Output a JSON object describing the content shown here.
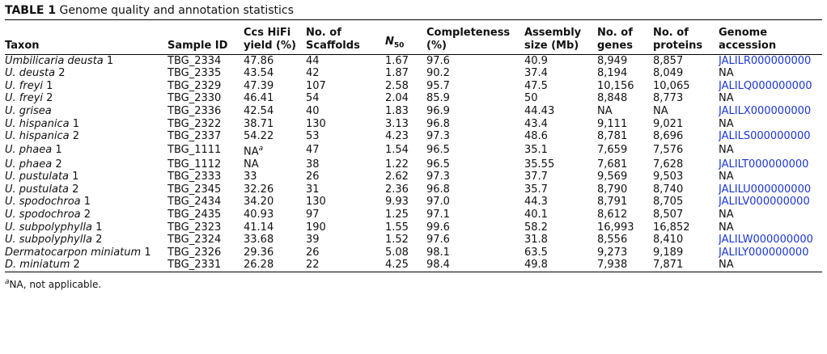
{
  "caption": {
    "label": "TABLE 1",
    "text": "Genome quality and annotation statistics"
  },
  "columns": [
    {
      "line1": "",
      "line2": "Taxon"
    },
    {
      "line1": "",
      "line2": "Sample ID"
    },
    {
      "line1": "Ccs HiFi",
      "line2": "yield (%)"
    },
    {
      "line1": "No. of",
      "line2": "Scaffolds"
    },
    {
      "line1": "",
      "line2": "N",
      "sub": "50"
    },
    {
      "line1": "Completeness",
      "line2": "(%)"
    },
    {
      "line1": "Assembly",
      "line2": "size (Mb)"
    },
    {
      "line1": "No. of",
      "line2": "genes"
    },
    {
      "line1": "No. of",
      "line2": "proteins"
    },
    {
      "line1": "Genome",
      "line2": "accession"
    }
  ],
  "rows": [
    {
      "taxon_italic": "Umbilicaria deusta",
      "taxon_num": "1",
      "sample": "TBG_2334",
      "yield": "47.86",
      "yield_sup": "",
      "scaffolds": "44",
      "n50": "1.67",
      "completeness": "97.6",
      "size": "40.9",
      "genes": "8,949",
      "proteins": "8,857",
      "accession": "JALILR000000000",
      "accession_link": true
    },
    {
      "taxon_italic": "U. deusta",
      "taxon_num": "2",
      "sample": "TBG_2335",
      "yield": "43.54",
      "yield_sup": "",
      "scaffolds": "42",
      "n50": "1.87",
      "completeness": "90.2",
      "size": "37.4",
      "genes": "8,194",
      "proteins": "8,049",
      "accession": "NA",
      "accession_link": false
    },
    {
      "taxon_italic": "U. freyi",
      "taxon_num": "1",
      "sample": "TBG_2329",
      "yield": "47.39",
      "yield_sup": "",
      "scaffolds": "107",
      "n50": "2.58",
      "completeness": "95.7",
      "size": "47.5",
      "genes": "10,156",
      "proteins": "10,065",
      "accession": "JALILQ000000000",
      "accession_link": true
    },
    {
      "taxon_italic": "U. freyi",
      "taxon_num": "2",
      "sample": "TBG_2330",
      "yield": "46.41",
      "yield_sup": "",
      "scaffolds": "54",
      "n50": "2.04",
      "completeness": "85.9",
      "size": "50",
      "genes": "8,848",
      "proteins": "8,773",
      "accession": "NA",
      "accession_link": false
    },
    {
      "taxon_italic": "U. grisea",
      "taxon_num": "",
      "sample": "TBG_2336",
      "yield": "42.54",
      "yield_sup": "",
      "scaffolds": "40",
      "n50": "1.83",
      "completeness": "96.9",
      "size": "44.43",
      "genes": "NA",
      "proteins": "NA",
      "accession": "JALILX000000000",
      "accession_link": true
    },
    {
      "taxon_italic": "U. hispanica",
      "taxon_num": "1",
      "sample": "TBG_2322",
      "yield": "38.71",
      "yield_sup": "",
      "scaffolds": "130",
      "n50": "3.13",
      "completeness": "96.8",
      "size": "43.4",
      "genes": "9,111",
      "proteins": "9,021",
      "accession": "NA",
      "accession_link": false
    },
    {
      "taxon_italic": "U. hispanica",
      "taxon_num": "2",
      "sample": "TBG_2337",
      "yield": "54.22",
      "yield_sup": "",
      "scaffolds": "53",
      "n50": "4.23",
      "completeness": "97.3",
      "size": "48.6",
      "genes": "8,781",
      "proteins": "8,696",
      "accession": "JALILS000000000",
      "accession_link": true
    },
    {
      "taxon_italic": "U. phaea",
      "taxon_num": "1",
      "sample": "TBG_1111",
      "yield": "NA",
      "yield_sup": "a",
      "scaffolds": "47",
      "n50": "1.54",
      "completeness": "96.5",
      "size": "35.1",
      "genes": "7,659",
      "proteins": "7,576",
      "accession": "NA",
      "accession_link": false
    },
    {
      "taxon_italic": "U. phaea",
      "taxon_num": "2",
      "sample": "TBG_1112",
      "yield": "NA",
      "yield_sup": "",
      "scaffolds": "38",
      "n50": "1.22",
      "completeness": "96.5",
      "size": "35.55",
      "genes": "7,681",
      "proteins": "7,628",
      "accession": "JALILT000000000",
      "accession_link": true
    },
    {
      "taxon_italic": "U. pustulata",
      "taxon_num": "1",
      "sample": "TBG_2333",
      "yield": "33",
      "yield_sup": "",
      "scaffolds": "26",
      "n50": "2.62",
      "completeness": "97.3",
      "size": "37.7",
      "genes": "9,569",
      "proteins": "9,503",
      "accession": "NA",
      "accession_link": false
    },
    {
      "taxon_italic": "U. pustulata",
      "taxon_num": "2",
      "sample": "TBG_2345",
      "yield": "32.26",
      "yield_sup": "",
      "scaffolds": "31",
      "n50": "2.36",
      "completeness": "96.8",
      "size": "35.7",
      "genes": "8,790",
      "proteins": "8,740",
      "accession": "JALILU000000000",
      "accession_link": true
    },
    {
      "taxon_italic": "U. spodochroa",
      "taxon_num": "1",
      "sample": "TBG_2434",
      "yield": "34.20",
      "yield_sup": "",
      "scaffolds": "130",
      "n50": "9.93",
      "completeness": "97.0",
      "size": "44.3",
      "genes": "8,791",
      "proteins": "8,705",
      "accession": "JALILV000000000",
      "accession_link": true
    },
    {
      "taxon_italic": "U. spodochroa",
      "taxon_num": "2",
      "sample": "TBG_2435",
      "yield": "40.93",
      "yield_sup": "",
      "scaffolds": "97",
      "n50": "1.25",
      "completeness": "97.1",
      "size": "40.1",
      "genes": "8,612",
      "proteins": "8,507",
      "accession": "NA",
      "accession_link": false
    },
    {
      "taxon_italic": "U. subpolyphylla",
      "taxon_num": "1",
      "sample": "TBG_2323",
      "yield": "41.14",
      "yield_sup": "",
      "scaffolds": "190",
      "n50": "1.55",
      "completeness": "99.6",
      "size": "58.2",
      "genes": "16,993",
      "proteins": "16,852",
      "accession": "NA",
      "accession_link": false
    },
    {
      "taxon_italic": "U. subpolyphylla",
      "taxon_num": "2",
      "sample": "TBG_2324",
      "yield": "33.68",
      "yield_sup": "",
      "scaffolds": "39",
      "n50": "1.52",
      "completeness": "97.6",
      "size": "31.8",
      "genes": "8,556",
      "proteins": "8,410",
      "accession": "JALILW000000000",
      "accession_link": true
    },
    {
      "taxon_italic": "Dermatocarpon miniatum",
      "taxon_num": "1",
      "sample": "TBG_2326",
      "yield": "29.36",
      "yield_sup": "",
      "scaffolds": "26",
      "n50": "5.08",
      "completeness": "98.1",
      "size": "63.5",
      "genes": "9,273",
      "proteins": "9,189",
      "accession": "JALILY000000000",
      "accession_link": true
    },
    {
      "taxon_italic": "D. miniatum",
      "taxon_num": "2",
      "sample": "TBG_2331",
      "yield": "26.28",
      "yield_sup": "",
      "scaffolds": "22",
      "n50": "4.25",
      "completeness": "98.4",
      "size": "49.8",
      "genes": "7,938",
      "proteins": "7,871",
      "accession": "NA",
      "accession_link": false
    }
  ],
  "footnote": {
    "mark": "a",
    "text": "NA, not applicable."
  },
  "colors": {
    "link": "#1a35d6",
    "text": "#111111",
    "rule": "#000000"
  }
}
